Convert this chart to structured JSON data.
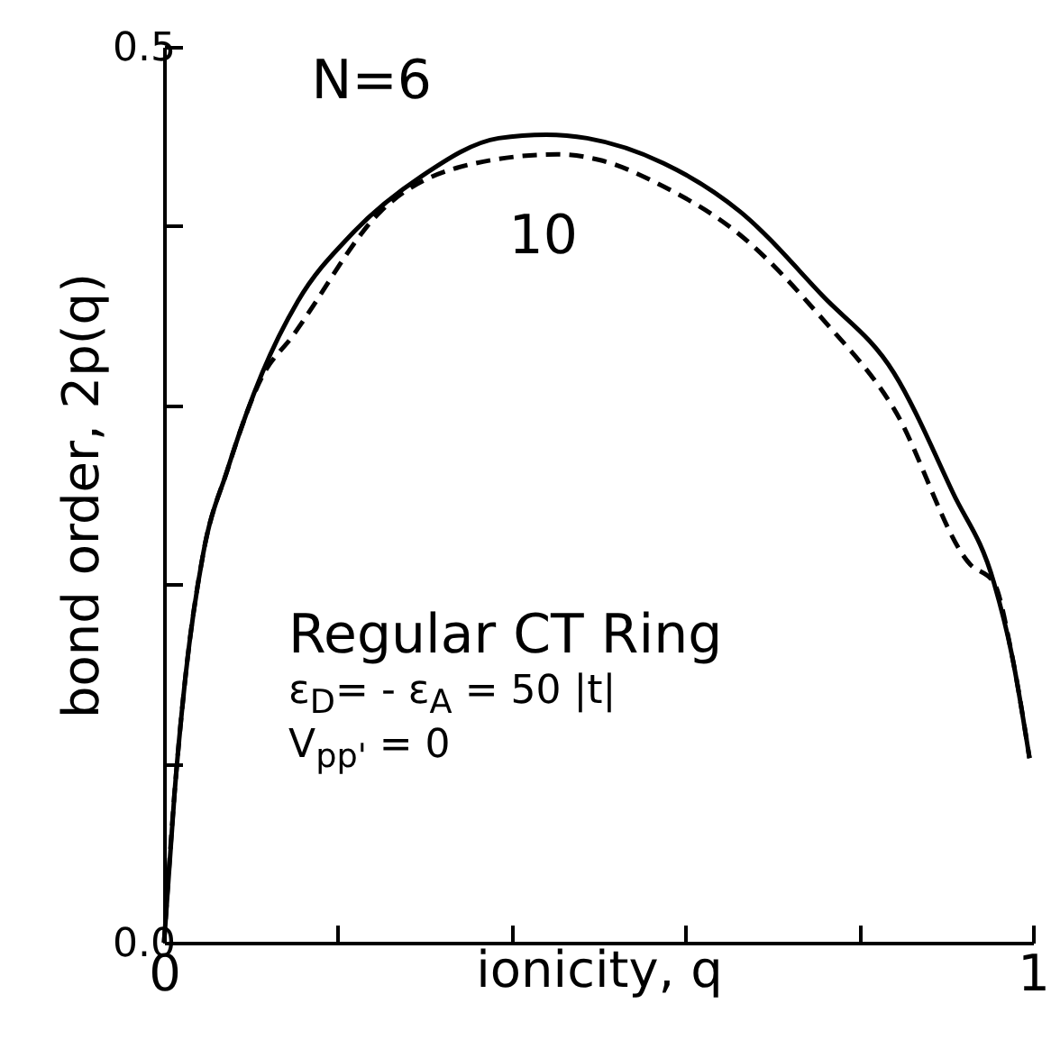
{
  "chart_data": {
    "type": "line",
    "xlabel": "ionicity, q",
    "ylabel": "bond order, 2p(q)",
    "series": [
      {
        "name": "N=6",
        "color": "#000000",
        "line_style": "solid",
        "x": [
          0,
          0.012,
          0.025,
          0.045,
          0.073,
          0.113,
          0.154,
          0.215,
          0.297,
          0.385,
          0.44,
          0.487,
          0.575,
          0.663,
          0.758,
          0.84,
          0.908,
          0.955,
          0.976,
          0.996
        ],
        "values": [
          0,
          0.083,
          0.15,
          0.217,
          0.264,
          0.318,
          0.358,
          0.395,
          0.428,
          0.449,
          0.451,
          0.449,
          0.435,
          0.408,
          0.361,
          0.318,
          0.251,
          0.201,
          0.16,
          0.103
        ]
      },
      {
        "name": "10",
        "color": "#000000",
        "line_style": "dashed",
        "x": [
          0,
          0.012,
          0.025,
          0.045,
          0.073,
          0.113,
          0.147,
          0.249,
          0.358,
          0.453,
          0.5,
          0.575,
          0.663,
          0.758,
          0.84,
          0.928,
          0.955,
          0.976,
          0.996
        ],
        "values": [
          0,
          0.083,
          0.15,
          0.217,
          0.264,
          0.316,
          0.338,
          0.408,
          0.435,
          0.44,
          0.437,
          0.422,
          0.395,
          0.348,
          0.298,
          0.211,
          0.201,
          0.16,
          0.103
        ]
      }
    ],
    "xlim": [
      0,
      1
    ],
    "ylim": [
      0,
      0.5
    ],
    "xticks": [
      {
        "value": 0,
        "label": "0"
      },
      {
        "value": 0.2,
        "label": null
      },
      {
        "value": 0.4,
        "label": null
      },
      {
        "value": 0.6,
        "label": null
      },
      {
        "value": 0.8,
        "label": null
      },
      {
        "value": 1,
        "label": "1"
      }
    ],
    "yticks": [
      {
        "value": 0,
        "label": "0.0"
      },
      {
        "value": 0.1,
        "label": null
      },
      {
        "value": 0.2,
        "label": null
      },
      {
        "value": 0.3,
        "label": null
      },
      {
        "value": 0.4,
        "label": null
      },
      {
        "value": 0.5,
        "label": "0.5"
      }
    ],
    "annotations": [
      "Regular CT Ring",
      "ε$_{D}$= - ε$_{A}$ = 50 |t|",
      "V$_{pp'}$ = 0"
    ]
  }
}
